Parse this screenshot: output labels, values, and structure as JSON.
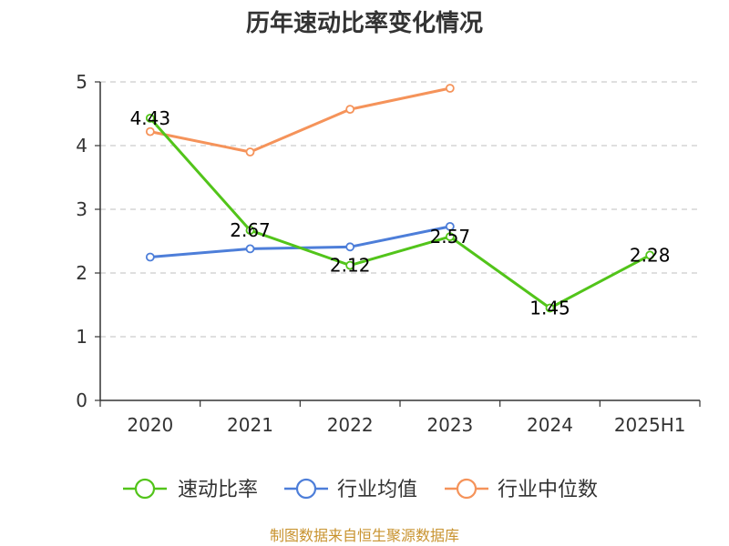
{
  "chart_data": {
    "type": "line",
    "title": "历年速动比率变化情况",
    "categories": [
      "2020",
      "2021",
      "2022",
      "2023",
      "2024",
      "2025H1"
    ],
    "ylim": [
      0,
      5
    ],
    "yticks": [
      "0",
      "1",
      "2",
      "3",
      "4",
      "5"
    ],
    "grid": true,
    "legend_position": "bottom",
    "series": [
      {
        "name": "速动比率",
        "color": "#52c41a",
        "values": [
          4.43,
          2.67,
          2.12,
          2.57,
          1.45,
          2.28
        ],
        "labels": [
          "4.43",
          "2.67",
          "2.12",
          "2.57",
          "1.45",
          "2.28"
        ]
      },
      {
        "name": "行业均值",
        "color": "#4d7ed9",
        "values": [
          2.25,
          2.38,
          2.41,
          2.73,
          null,
          null
        ]
      },
      {
        "name": "行业中位数",
        "color": "#f5935a",
        "values": [
          4.22,
          3.9,
          4.57,
          4.9,
          null,
          null
        ]
      }
    ]
  },
  "footer": {
    "source": "制图数据来自恒生聚源数据库"
  }
}
